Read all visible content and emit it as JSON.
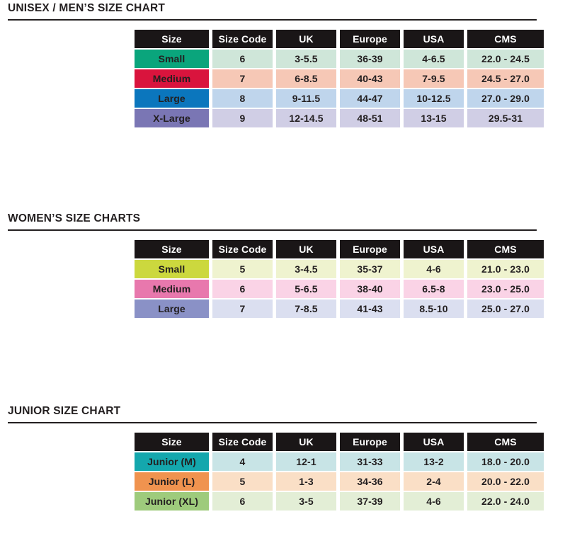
{
  "page": {
    "background": "#ffffff",
    "title_color": "#231f20",
    "header_bg": "#1a1617",
    "header_text_color": "#ffffff",
    "cell_text_color": "#231f20"
  },
  "sections": [
    {
      "title": "UNISEX / MEN’S SIZE CHART",
      "columns": [
        "Size",
        "Size Code",
        "UK",
        "Europe",
        "USA",
        "CMS"
      ],
      "rows": [
        {
          "label": "Small",
          "label_color": "#0aa57c",
          "row_color": "#cfe6d9",
          "values": [
            "6",
            "3-5.5",
            "36-39",
            "4-6.5",
            "22.0 - 24.5"
          ]
        },
        {
          "label": "Medium",
          "label_color": "#d9143d",
          "row_color": "#f6c8b6",
          "values": [
            "7",
            "6-8.5",
            "40-43",
            "7-9.5",
            "24.5 - 27.0"
          ]
        },
        {
          "label": "Large",
          "label_color": "#0b76bd",
          "row_color": "#bfd5ec",
          "values": [
            "8",
            "9-11.5",
            "44-47",
            "10-12.5",
            "27.0 - 29.0"
          ]
        },
        {
          "label": "X-Large",
          "label_color": "#7a76b4",
          "row_color": "#d0cee5",
          "values": [
            "9",
            "12-14.5",
            "48-51",
            "13-15",
            "29.5-31"
          ]
        }
      ]
    },
    {
      "title": "WOMEN’S SIZE CHARTS",
      "columns": [
        "Size",
        "Size Code",
        "UK",
        "Europe",
        "USA",
        "CMS"
      ],
      "rows": [
        {
          "label": "Small",
          "label_color": "#ccd83e",
          "row_color": "#eff3cf",
          "values": [
            "5",
            "3-4.5",
            "35-37",
            "4-6",
            "21.0 - 23.0"
          ]
        },
        {
          "label": "Medium",
          "label_color": "#e878ad",
          "row_color": "#fad3e6",
          "values": [
            "6",
            "5-6.5",
            "38-40",
            "6.5-8",
            "23.0 - 25.0"
          ]
        },
        {
          "label": "Large",
          "label_color": "#8a91c6",
          "row_color": "#dbdff0",
          "values": [
            "7",
            "7-8.5",
            "41-43",
            "8.5-10",
            "25.0 - 27.0"
          ]
        }
      ]
    },
    {
      "title": "JUNIOR SIZE CHART",
      "columns": [
        "Size",
        "Size Code",
        "UK",
        "Europe",
        "USA",
        "CMS"
      ],
      "rows": [
        {
          "label": "Junior (M)",
          "label_color": "#14a7ad",
          "row_color": "#c8e4e6",
          "values": [
            "4",
            "12-1",
            "31-33",
            "13-2",
            "18.0 - 20.0"
          ]
        },
        {
          "label": "Junior (L)",
          "label_color": "#f0934f",
          "row_color": "#fadfc6",
          "values": [
            "5",
            "1-3",
            "34-36",
            "2-4",
            "20.0 - 22.0"
          ]
        },
        {
          "label": "Junior (XL)",
          "label_color": "#9ecb7c",
          "row_color": "#e3eed6",
          "values": [
            "6",
            "3-5",
            "37-39",
            "4-6",
            "22.0 - 24.0"
          ]
        }
      ]
    }
  ]
}
